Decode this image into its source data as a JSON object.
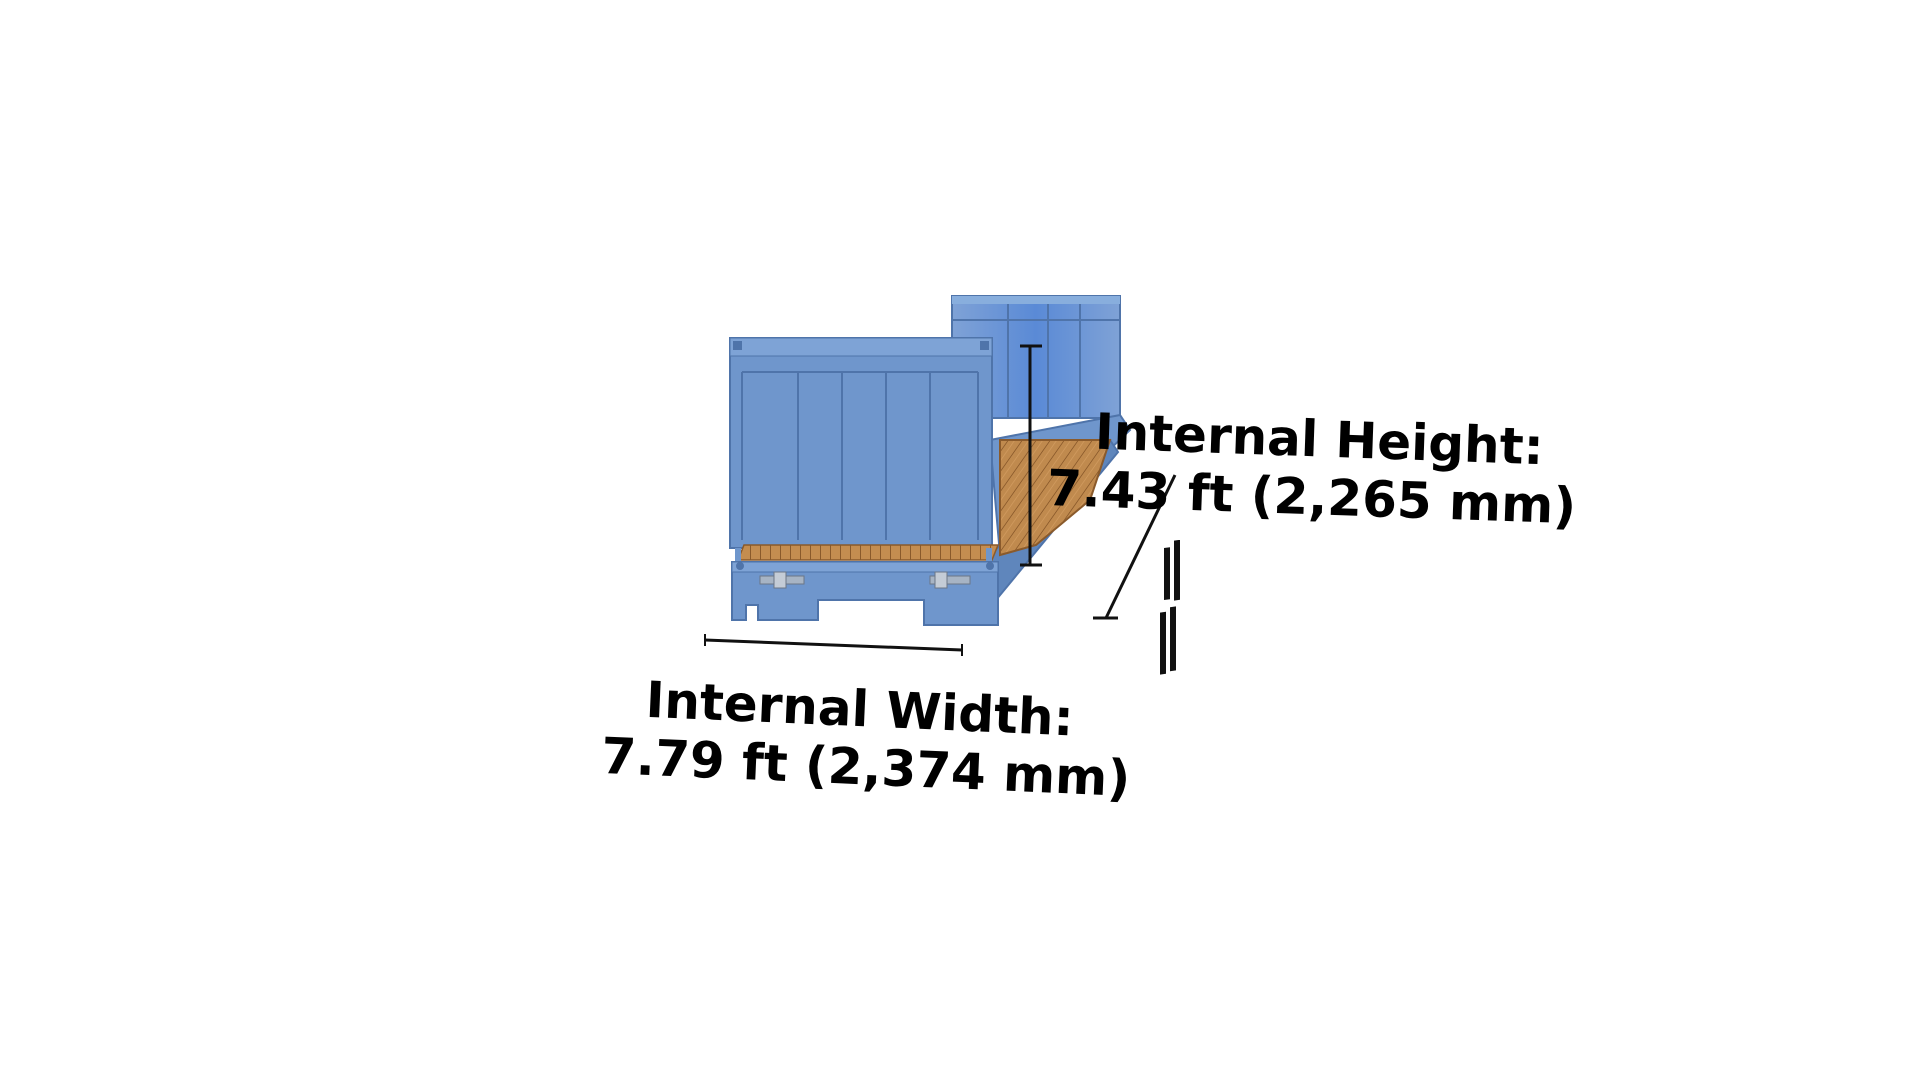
{
  "dimensions": {
    "height": {
      "title": "Internal Height:",
      "value": "7.43 ft  (2,265 mm)"
    },
    "width": {
      "title": "Internal Width:",
      "value": "7.79 ft (2,374 mm)"
    }
  },
  "colors": {
    "container_blue": "#6f96cc",
    "container_blue_dark": "#4f74aa",
    "container_blue_light": "#88aedd",
    "floor_wood": "#c08a4e",
    "floor_wood_dark": "#8a5a2b",
    "dimension_line": "#111111",
    "background": "#ffffff"
  },
  "icons": {
    "container": "flat-rack-container-illustration"
  }
}
